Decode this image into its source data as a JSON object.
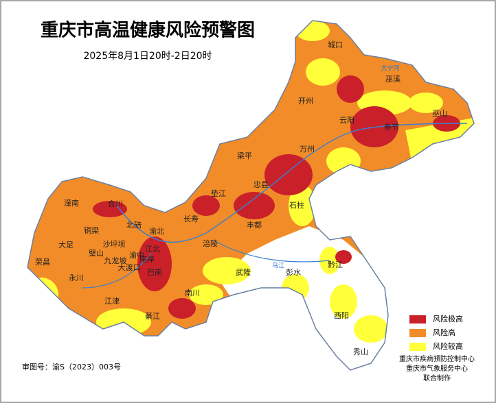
{
  "header": {
    "title": "重庆市高温健康风险预警图",
    "subtitle": "2025年8月1日20时-2日20时"
  },
  "districts": [
    "城口",
    "巫溪",
    "开州",
    "巫山",
    "云阳",
    "奉节",
    "万州",
    "梁平",
    "忠县",
    "垫江",
    "石柱",
    "潼南",
    "合川",
    "长寿",
    "丰都",
    "北碚",
    "渝北",
    "铜梁",
    "涪陵",
    "大足",
    "沙坪坝",
    "江北",
    "璧山",
    "渝中",
    "九龙坡",
    "南岸",
    "大渡口",
    "荣昌",
    "巴南",
    "武隆",
    "彭水",
    "黔江",
    "永川",
    "南川",
    "江津",
    "綦江",
    "酉阳",
    "秀山"
  ],
  "rivers": [
    "大宁河",
    "乌江"
  ],
  "legend": [
    {
      "label": "风险极高",
      "color": "#c9202a"
    },
    {
      "label": "风险高",
      "color": "#f28c28"
    },
    {
      "label": "风险较高",
      "color": "#ffff3a"
    }
  ],
  "footer": {
    "approval": "审图号：渝S（2023）003号",
    "makers": [
      "重庆市疾病预防控制中心",
      "重庆市气象服务中心",
      "联合制作"
    ]
  }
}
